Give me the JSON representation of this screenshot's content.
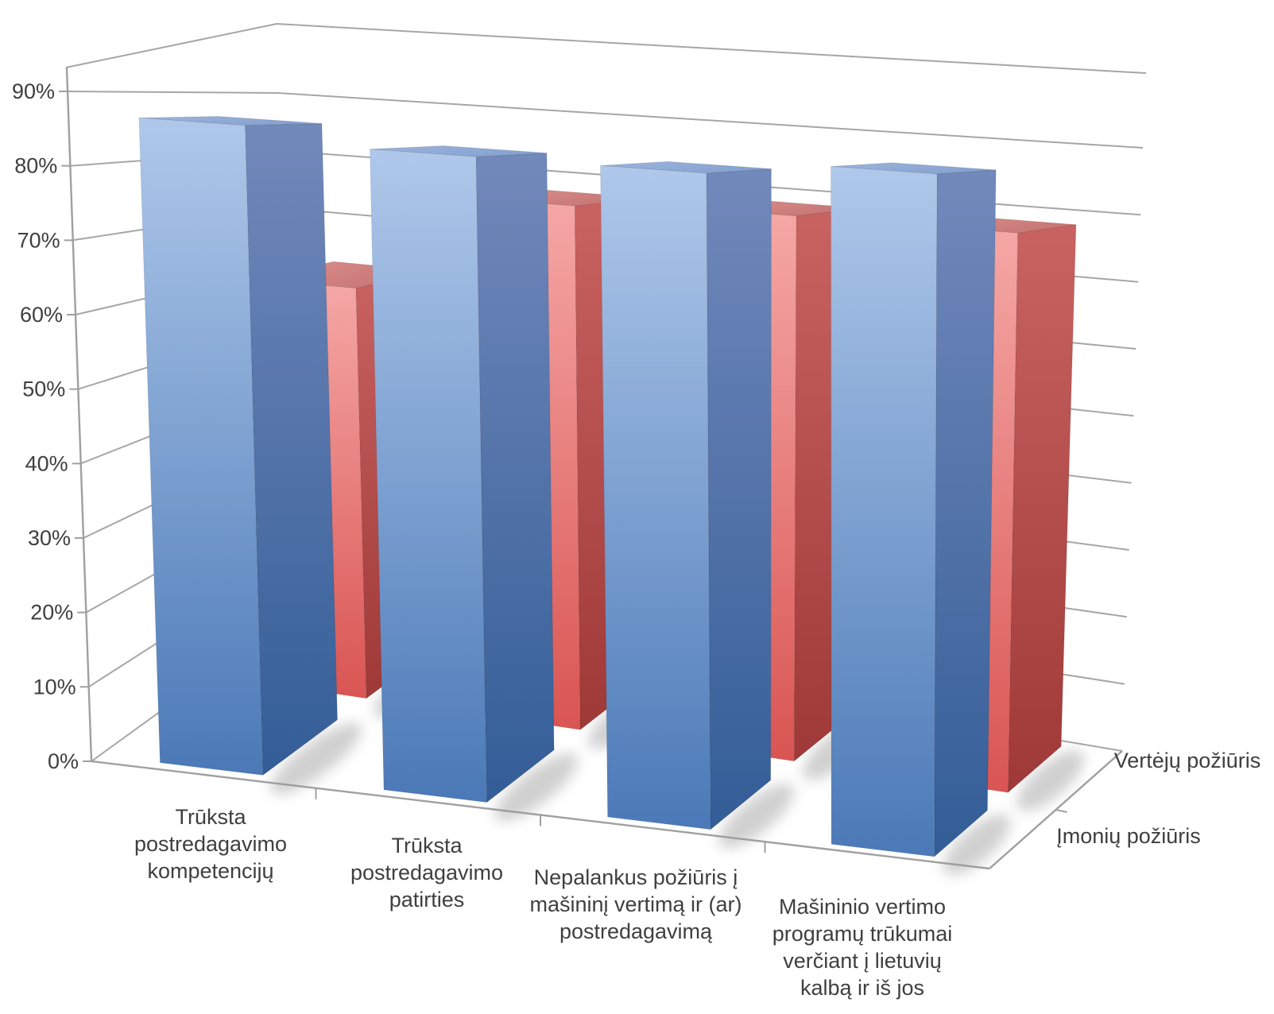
{
  "chart_data": {
    "type": "bar",
    "projection": "3d-perspective-columns",
    "title": "",
    "categories": [
      "Trūksta postredagavimo kompetencijų",
      "Trūksta postredagavimo patirties",
      "Nepalankus požiūris į mašininį vertimą ir (ar) postredagavimą",
      "Mašininio vertimo programų trūkumai verčiant į lietuvių kalbą ir iš jos"
    ],
    "category_label_lines": [
      [
        "Trūksta",
        "postredagavimo",
        "kompetencijų"
      ],
      [
        "Trūksta",
        "postredagavimo",
        "patirties"
      ],
      [
        "Nepalankus požiūris į",
        "mašininį vertimą ir (ar)",
        "postredagavimą"
      ],
      [
        "Mašininio vertimo",
        "programų trūkumai",
        "verčiant į lietuvių",
        "kalbą ir iš jos"
      ]
    ],
    "series": [
      {
        "name": "Įmonių požiūris",
        "row": "front",
        "unit": "%",
        "values": [
          87,
          85,
          85,
          87
        ],
        "style": {
          "front_top": "#AFC8EA",
          "front_bottom": "#4B79B7",
          "side_top": "#7289BB",
          "side_bottom": "#335D97",
          "top_left": "#9DB5DD",
          "top_right": "#85A2D0"
        }
      },
      {
        "name": "Vertėjų požiūris",
        "row": "back",
        "unit": "%",
        "values": [
          62,
          77,
          78,
          78
        ],
        "style": {
          "front_top": "#F5A8A6",
          "front_bottom": "#D95553",
          "side_top": "#C96361",
          "side_bottom": "#9E3937",
          "top_left": "#DE9392",
          "top_right": "#C67573"
        }
      }
    ],
    "y_axis": {
      "min": 0,
      "max": 90,
      "step": 10,
      "unit": "%",
      "tick_labels": [
        "0%",
        "10%",
        "20%",
        "30%",
        "40%",
        "50%",
        "60%",
        "70%",
        "80%",
        "90%"
      ]
    },
    "depth_axis_labels_order_front_to_back": [
      "Įmonių požiūris",
      "Vertėjų požiūris"
    ],
    "legend_position": "depth-axis-right",
    "grid": true
  },
  "colors": {
    "background": "#FFFFFF",
    "gridline": "#A6A6A6",
    "axis": "#A0A0A0",
    "text": "#3F3F3F",
    "shadow": "#999999"
  }
}
